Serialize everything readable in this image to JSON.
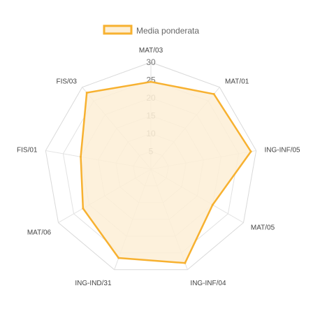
{
  "chart_data": {
    "type": "radar",
    "categories": [
      "MAT/03",
      "MAT/01",
      "ING-INF/05",
      "MAT/05",
      "ING-INF/04",
      "ING-IND/31",
      "MAT/06",
      "FIS/01",
      "FIS/03"
    ],
    "series": [
      {
        "name": "Media ponderata",
        "values": [
          24.5,
          27.5,
          28.5,
          20.0,
          28.0,
          26.5,
          22.0,
          20.0,
          28.0
        ],
        "stroke": "#f7b130",
        "fill": "#fdefd6"
      }
    ],
    "scale": {
      "min": 0,
      "max": 30,
      "step": 5
    },
    "ticks": [
      "5",
      "10",
      "15",
      "20",
      "25",
      "30"
    ],
    "legend_position": "top",
    "grid": true
  }
}
